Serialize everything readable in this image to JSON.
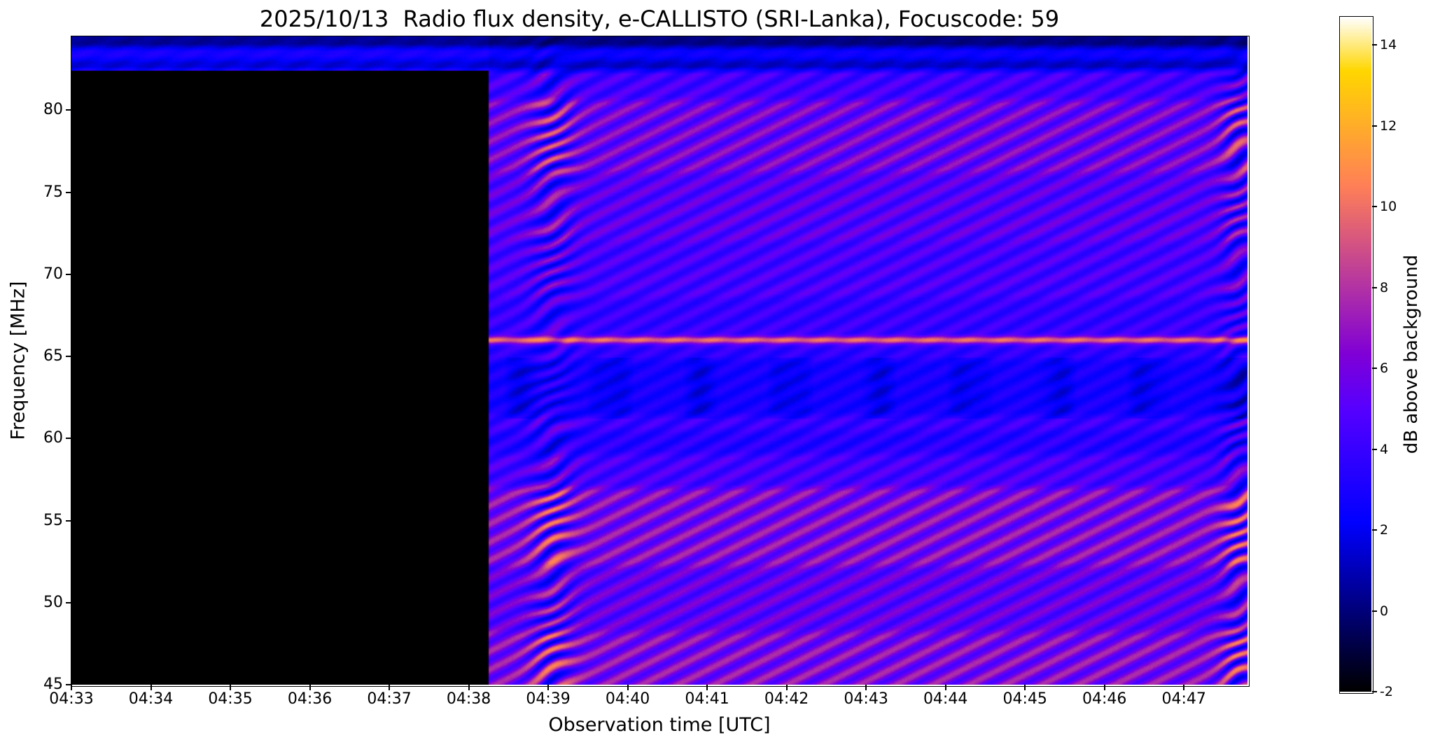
{
  "chart_data": {
    "type": "heatmap",
    "subtype": "radio_spectrogram",
    "title": "2025/10/13  Radio flux density, e-CALLISTO (SRI-Lanka), Focuscode: 59",
    "xlabel": "Observation time [UTC]",
    "ylabel": "Frequency [MHz]",
    "x_ticks": [
      "04:33",
      "04:34",
      "04:35",
      "04:36",
      "04:37",
      "04:38",
      "04:39",
      "04:40",
      "04:41",
      "04:42",
      "04:43",
      "04:44",
      "04:45",
      "04:46",
      "04:47"
    ],
    "y_ticks": [
      80,
      75,
      70,
      65,
      60,
      55,
      50,
      45
    ],
    "freq_range_mhz": [
      45,
      84.5
    ],
    "time_start_utc": "04:33",
    "duration_min": 14.8,
    "grid": false,
    "colorbar": {
      "label": "dB above background",
      "ticks": [
        -2,
        0,
        2,
        4,
        6,
        8,
        10,
        12,
        14
      ],
      "vmin": -2,
      "vmax": 14.7,
      "colormap": "gnuplot2"
    },
    "features": {
      "no_data_blackout": {
        "from_utc": "04:33:00",
        "until_utc": "04:38:15",
        "until_min": 5.25,
        "below_mhz": 82.4
      },
      "bright_horizontal_line": {
        "freq_mhz": 66.0,
        "level_db": 9.5
      },
      "top_blue_band_mhz": [
        83.1,
        83.8
      ],
      "stripe_surge_times_min": [
        6.05,
        14.68
      ],
      "diagonal_stripes": true
    },
    "bands": [
      {
        "f": [
          45.0,
          48.2
        ],
        "level": 6.2,
        "stripe": 1.7
      },
      {
        "f": [
          48.2,
          52.2
        ],
        "level": 5.2,
        "stripe": 1.3
      },
      {
        "f": [
          52.2,
          57.0
        ],
        "level": 6.2,
        "stripe": 1.7
      },
      {
        "f": [
          57.0,
          59.0
        ],
        "level": 4.4,
        "stripe": 1.0
      },
      {
        "f": [
          59.0,
          60.5
        ],
        "level": 3.4,
        "stripe": 0.8
      },
      {
        "f": [
          60.5,
          61.4
        ],
        "level": 4.0,
        "stripe": 0.9
      },
      {
        "f": [
          61.4,
          64.8
        ],
        "level": 2.9,
        "stripe": 0.55
      },
      {
        "f": [
          64.8,
          65.6
        ],
        "level": 3.6,
        "stripe": 0.7
      },
      {
        "f": [
          65.6,
          66.4
        ],
        "level": 4.0,
        "stripe": 0.6
      },
      {
        "f": [
          66.4,
          68.6
        ],
        "level": 3.9,
        "stripe": 0.8
      },
      {
        "f": [
          68.6,
          72.0
        ],
        "level": 4.4,
        "stripe": 1.0
      },
      {
        "f": [
          72.0,
          76.2
        ],
        "level": 4.9,
        "stripe": 1.2
      },
      {
        "f": [
          76.2,
          80.6
        ],
        "level": 5.7,
        "stripe": 1.6
      },
      {
        "f": [
          80.6,
          82.4
        ],
        "level": 4.3,
        "stripe": 1.0
      },
      {
        "f": [
          82.4,
          83.1
        ],
        "level": 1.2,
        "stripe": 0.3
      },
      {
        "f": [
          83.1,
          83.8
        ],
        "level": 2.6,
        "stripe": 0.3
      },
      {
        "f": [
          83.8,
          84.5
        ],
        "level": 0.1,
        "stripe": 0.2
      }
    ]
  }
}
